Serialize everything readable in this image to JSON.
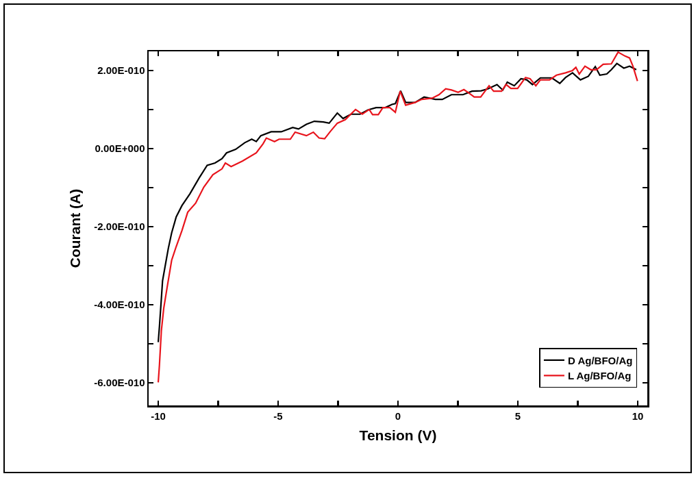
{
  "chart_data": {
    "type": "line",
    "xlabel": "Tension (V)",
    "ylabel": "Courant (A)",
    "xlim": [
      -10.4,
      10.4
    ],
    "ylim": [
      -6.58e-10,
      2.49e-10
    ],
    "xticks": [
      -10,
      {
        "value": -7.5,
        "label": null
      },
      -5,
      {
        "value": -2.5,
        "label": null
      },
      0,
      {
        "value": 2.5,
        "label": null
      },
      5,
      {
        "value": 7.5,
        "label": null
      },
      10
    ],
    "yticks": [
      {
        "value": -6e-10,
        "label": "-6.00E-010"
      },
      {
        "value": -5e-10,
        "label": null
      },
      {
        "value": -4e-10,
        "label": "-4.00E-010"
      },
      {
        "value": -3e-10,
        "label": null
      },
      {
        "value": -2e-10,
        "label": "-2.00E-010"
      },
      {
        "value": -1e-10,
        "label": null
      },
      {
        "value": 0,
        "label": "0.00E+000"
      },
      {
        "value": 1e-10,
        "label": null
      },
      {
        "value": 2e-10,
        "label": "2.00E-010"
      }
    ],
    "grid": false,
    "legend": "bottom right",
    "line_style": "solid",
    "marker": "none",
    "series": [
      {
        "name": "D Ag/BFO/Ag",
        "color": "#000000",
        "x": [
          -10.0,
          -9.95,
          -9.87,
          -9.82,
          -9.72,
          -9.58,
          -9.44,
          -9.25,
          -9.01,
          -8.68,
          -8.29,
          -7.96,
          -7.63,
          -7.34,
          -7.15,
          -6.77,
          -6.39,
          -6.1,
          -5.91,
          -5.72,
          -5.29,
          -4.87,
          -4.39,
          -4.15,
          -3.82,
          -3.49,
          -3.11,
          -2.87,
          -2.53,
          -2.29,
          -1.96,
          -1.58,
          -1.25,
          -0.91,
          -0.53,
          -0.25,
          -0.11,
          0.11,
          0.32,
          0.71,
          1.09,
          1.56,
          1.85,
          2.23,
          2.71,
          3.09,
          3.47,
          3.75,
          4.13,
          4.37,
          4.56,
          4.85,
          5.13,
          5.37,
          5.61,
          5.94,
          6.42,
          6.75,
          6.99,
          7.28,
          7.61,
          7.94,
          8.23,
          8.42,
          8.71,
          8.9,
          9.13,
          9.42,
          9.66,
          9.94
        ],
        "values": [
          -4.96e-10,
          -4.56e-10,
          -3.85e-10,
          -3.39e-10,
          -3.04e-10,
          -2.56e-10,
          -2.16e-10,
          -1.75e-10,
          -1.46e-10,
          -1.16e-10,
          -7.5e-11,
          -4.3e-11,
          -3.7e-11,
          -2.6e-11,
          -1.1e-11,
          -2e-12,
          1.5e-11,
          2.4e-11,
          1.8e-11,
          3.3e-11,
          4.3e-11,
          4.3e-11,
          5.4e-11,
          5e-11,
          6.2e-11,
          7e-11,
          6.8e-11,
          6.5e-11,
          9.1e-11,
          7.7e-11,
          8.8e-11,
          8.8e-11,
          9.9e-11,
          1.05e-10,
          1.05e-10,
          1.13e-10,
          1.15e-10,
          1.48e-10,
          1.18e-10,
          1.18e-10,
          1.32e-10,
          1.26e-10,
          1.26e-10,
          1.38e-10,
          1.38e-10,
          1.47e-10,
          1.48e-10,
          1.53e-10,
          1.64e-10,
          1.5e-10,
          1.7e-10,
          1.61e-10,
          1.79e-10,
          1.76e-10,
          1.64e-10,
          1.81e-10,
          1.81e-10,
          1.67e-10,
          1.82e-10,
          1.94e-10,
          1.76e-10,
          1.85e-10,
          2.1e-10,
          1.88e-10,
          1.91e-10,
          2.02e-10,
          2.18e-10,
          2.06e-10,
          2.11e-10,
          2.02e-10
        ]
      },
      {
        "name": "L Ag/BFO/Ag",
        "color": "#e8141c",
        "x": [
          -10.0,
          -9.95,
          -9.87,
          -9.77,
          -9.63,
          -9.44,
          -9.25,
          -9.01,
          -8.77,
          -8.44,
          -8.1,
          -7.72,
          -7.34,
          -7.2,
          -6.96,
          -6.49,
          -5.91,
          -5.63,
          -5.49,
          -5.15,
          -4.96,
          -4.49,
          -4.29,
          -3.82,
          -3.53,
          -3.29,
          -3.06,
          -2.82,
          -2.53,
          -2.2,
          -1.77,
          -1.49,
          -1.2,
          -1.06,
          -0.82,
          -0.63,
          -0.34,
          -0.11,
          0.09,
          0.32,
          0.71,
          0.99,
          1.42,
          1.71,
          1.99,
          2.23,
          2.51,
          2.75,
          2.99,
          3.18,
          3.45,
          3.8,
          3.99,
          4.32,
          4.51,
          4.71,
          4.99,
          5.32,
          5.51,
          5.75,
          5.94,
          6.32,
          6.61,
          6.99,
          7.28,
          7.42,
          7.56,
          7.8,
          8.04,
          8.28,
          8.56,
          8.9,
          9.18,
          9.47,
          9.66,
          9.8,
          9.99
        ],
        "values": [
          -5.99e-10,
          -5.55e-10,
          -4.67e-10,
          -4.09e-10,
          -3.56e-10,
          -2.86e-10,
          -2.51e-10,
          -2.1e-10,
          -1.63e-10,
          -1.4e-10,
          -9.9e-11,
          -6.7e-11,
          -5.2e-11,
          -3.7e-11,
          -4.6e-11,
          -3.2e-11,
          -1.1e-11,
          1.2e-11,
          2.7e-11,
          1.8e-11,
          2.4e-11,
          2.4e-11,
          4.2e-11,
          3.3e-11,
          4.2e-11,
          2.7e-11,
          2.5e-11,
          4.4e-11,
          6.5e-11,
          7.4e-11,
          1e-10,
          8.8e-11,
          1e-10,
          8.7e-11,
          8.7e-11,
          1.05e-10,
          1.05e-10,
          9.3e-11,
          1.47e-10,
          1.11e-10,
          1.18e-10,
          1.26e-10,
          1.29e-10,
          1.38e-10,
          1.53e-10,
          1.5e-10,
          1.44e-10,
          1.51e-10,
          1.41e-10,
          1.32e-10,
          1.32e-10,
          1.61e-10,
          1.47e-10,
          1.47e-10,
          1.64e-10,
          1.54e-10,
          1.54e-10,
          1.82e-10,
          1.79e-10,
          1.61e-10,
          1.76e-10,
          1.76e-10,
          1.88e-10,
          1.94e-10,
          2e-10,
          2.08e-10,
          1.91e-10,
          2.11e-10,
          2.02e-10,
          2.02e-10,
          2.16e-10,
          2.17e-10,
          2.47e-10,
          2.37e-10,
          2.32e-10,
          2.11e-10,
          1.73e-10
        ]
      }
    ]
  }
}
